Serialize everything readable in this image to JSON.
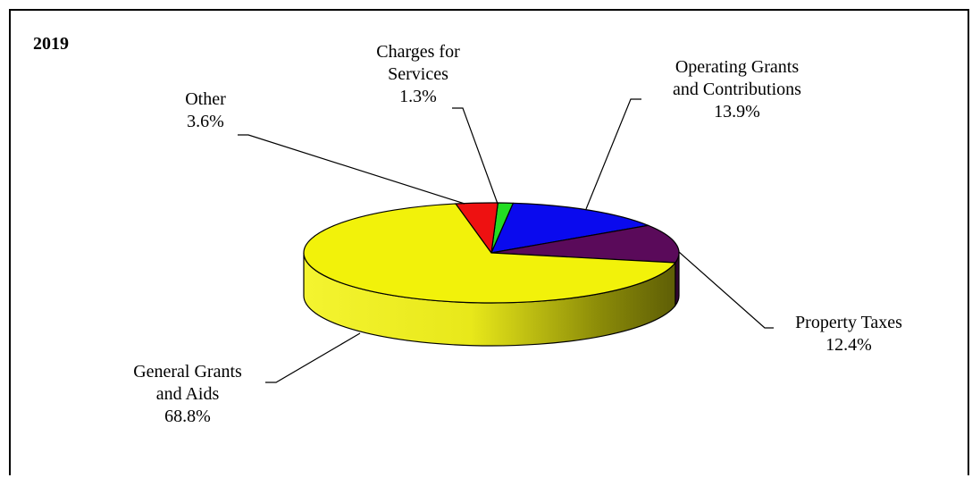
{
  "chart_data": {
    "type": "pie",
    "title": "2019",
    "slices": [
      {
        "label_lines": [
          "Charges for",
          "Services"
        ],
        "percent_label": "1.3%",
        "value": 1.3,
        "color": "#22dd22"
      },
      {
        "label_lines": [
          "Operating Grants",
          "and Contributions"
        ],
        "percent_label": "13.9%",
        "value": 13.9,
        "color": "#0a0aee"
      },
      {
        "label_lines": [
          "Property Taxes"
        ],
        "percent_label": "12.4%",
        "value": 12.4,
        "color": "#5a0a5a"
      },
      {
        "label_lines": [
          "General Grants",
          "and Aids"
        ],
        "percent_label": "68.8%",
        "value": 68.8,
        "color": "#f2f20a"
      },
      {
        "label_lines": [
          "Other"
        ],
        "percent_label": "3.6%",
        "value": 3.6,
        "color": "#ee1111"
      }
    ],
    "legend": "none",
    "style": "3d-tilted"
  }
}
